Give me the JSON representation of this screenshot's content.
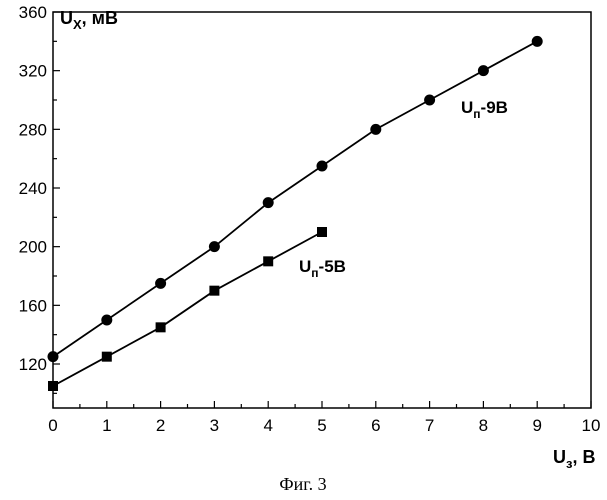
{
  "chart_data": {
    "type": "line",
    "caption": "Фиг. 3",
    "xlabel": {
      "main": "U",
      "sub": "з",
      "tail": ", В"
    },
    "ylabel": {
      "main": "U",
      "sub": "X",
      "tail": ", мВ"
    },
    "xlim": [
      0,
      10
    ],
    "ylim": [
      90,
      360
    ],
    "xticks": [
      0,
      1,
      2,
      3,
      4,
      5,
      6,
      7,
      8,
      9,
      10
    ],
    "yticks": [
      120,
      160,
      200,
      240,
      280,
      320,
      360
    ],
    "grid": false,
    "series": [
      {
        "label": {
          "main": "U",
          "sub": "п",
          "tail": "-9В"
        },
        "marker": "circle",
        "x": [
          0,
          1,
          2,
          3,
          4,
          5,
          6,
          7,
          8,
          9
        ],
        "y": [
          125,
          150,
          175,
          200,
          230,
          255,
          280,
          300,
          320,
          340
        ]
      },
      {
        "label": {
          "main": "U",
          "sub": "п",
          "tail": "-5В"
        },
        "marker": "square",
        "x": [
          0,
          1,
          2,
          3,
          4,
          5
        ],
        "y": [
          105,
          125,
          145,
          170,
          190,
          210
        ]
      }
    ]
  }
}
